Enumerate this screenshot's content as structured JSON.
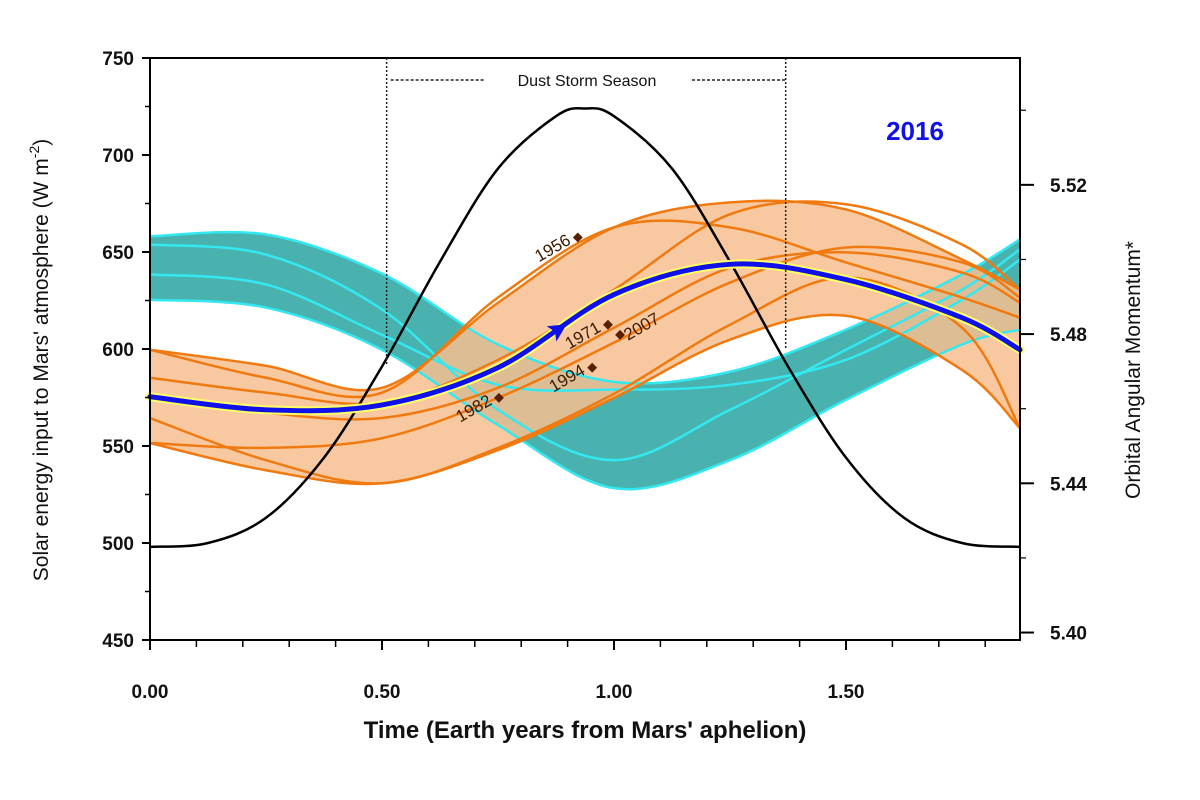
{
  "chart_data": {
    "type": "line",
    "title": "2016",
    "annotation_dust": "Dust Storm Season",
    "dust_storm_range": [
      0.51,
      1.37
    ],
    "xlabel": "Time (Earth years from Mars' aphelion)",
    "ylabel_left": "Solar energy input to Mars' atmosphere  (W m",
    "ylabel_left_sup": "-2",
    "ylabel_left_end": ")",
    "ylabel_right": "Orbital Angular Momentum*",
    "xlim": [
      0,
      1.875
    ],
    "ylim_left": [
      450,
      750
    ],
    "ylim_right": [
      5.398,
      5.554
    ],
    "x_ticks": [
      "0.00",
      "0.50",
      "1.00",
      "1.50"
    ],
    "x_tick_values": [
      0,
      0.5,
      1.0,
      1.5
    ],
    "y_left_ticks": [
      "450",
      "500",
      "550",
      "600",
      "650",
      "700",
      "750"
    ],
    "y_left_tick_values": [
      450,
      500,
      550,
      600,
      650,
      700,
      750
    ],
    "y_right_ticks": [
      "5.40",
      "5.44",
      "5.48",
      "5.52"
    ],
    "y_right_tick_values": [
      5.4,
      5.44,
      5.48,
      5.52
    ],
    "x": [
      0,
      0.25,
      0.5,
      0.75,
      1.0,
      1.25,
      1.5,
      1.75,
      1.875
    ],
    "solar_energy": {
      "axis": "left",
      "color": "#000000",
      "x": [
        0,
        0.125,
        0.25,
        0.375,
        0.5,
        0.625,
        0.75,
        0.875,
        0.9375,
        1.0,
        1.125,
        1.25,
        1.375,
        1.5,
        1.625,
        1.75,
        1.875
      ],
      "values": [
        498,
        500,
        513,
        544,
        591,
        645,
        693,
        720,
        724,
        720,
        693,
        645,
        591,
        544,
        513,
        500,
        498
      ]
    },
    "teal_band": {
      "axis": "right",
      "fill": "#2aa5a0",
      "edge": "#33e8f0",
      "upper": [
        5.5062,
        5.5067,
        5.4962,
        5.4772,
        5.4672,
        5.4699,
        5.4812,
        5.496,
        5.5054
      ],
      "lower": [
        5.4892,
        5.4871,
        5.4758,
        5.4556,
        5.4387,
        5.4462,
        5.4624,
        5.4772,
        5.4812
      ],
      "lines": [
        [
          5.496,
          5.4933,
          5.4798,
          5.4664,
          5.4651,
          5.4664,
          5.4731,
          5.4892,
          5.5
        ],
        [
          5.504,
          5.5013,
          5.4866,
          5.4597,
          5.4462,
          5.4597,
          5.4758,
          5.4919,
          5.5027
        ]
      ]
    },
    "orange_band": {
      "axis": "right",
      "fill": "#f7c08f",
      "edge": "#f07a10",
      "upper": [
        5.4758,
        5.4715,
        5.4656,
        5.4884,
        5.5086,
        5.5153,
        5.5134,
        5.5,
        5.4919
      ],
      "lower": [
        5.4508,
        5.4435,
        5.44,
        5.4489,
        5.4629,
        5.4785,
        5.4849,
        5.4704,
        5.4548
      ],
      "lines": [
        [
          5.4758,
          5.4683,
          5.4643,
          5.4898,
          5.5086,
          5.5086,
          5.4992,
          5.4898,
          5.4844
        ],
        [
          5.4683,
          5.4643,
          5.4616,
          5.4731,
          5.4919,
          5.5121,
          5.5148,
          5.504,
          5.4919
        ],
        [
          5.4629,
          5.4589,
          5.4575,
          5.4656,
          5.4817,
          5.4978,
          5.5019,
          5.4965,
          5.4884
        ],
        [
          5.4508,
          5.4495,
          5.4521,
          5.4629,
          5.4777,
          5.4938,
          5.5032,
          5.4992,
          5.4898
        ],
        [
          5.4575,
          5.4462,
          5.44,
          5.4495,
          5.464,
          5.4825,
          5.4952,
          5.4817,
          5.4548
        ]
      ]
    },
    "series_2016": {
      "axis": "right",
      "color": "#1010e8",
      "values": [
        5.4632,
        5.4597,
        5.461,
        5.471,
        5.4906,
        5.4987,
        5.4946,
        5.4844,
        5.4758
      ],
      "arrow_x": 0.88
    },
    "year_markers": [
      {
        "label": "1956",
        "x": 0.922,
        "y": 5.5059,
        "side": "left"
      },
      {
        "label": "1971",
        "x": 0.987,
        "y": 5.4825,
        "side": "left"
      },
      {
        "label": "2007",
        "x": 1.013,
        "y": 5.4798,
        "side": "right"
      },
      {
        "label": "1994",
        "x": 0.953,
        "y": 5.471,
        "side": "left"
      },
      {
        "label": "1982",
        "x": 0.752,
        "y": 5.4629,
        "side": "left"
      }
    ]
  }
}
